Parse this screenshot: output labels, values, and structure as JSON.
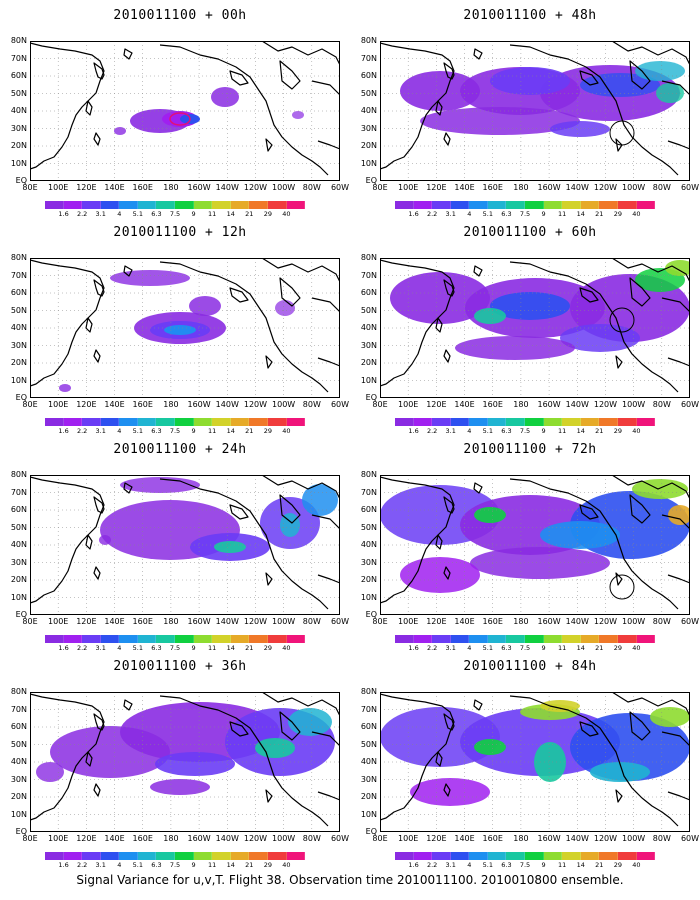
{
  "panels": [
    {
      "title": "2010011100 + 00h"
    },
    {
      "title": "2010011100 + 48h"
    },
    {
      "title": "2010011100 + 12h"
    },
    {
      "title": "2010011100 + 60h"
    },
    {
      "title": "2010011100 + 24h"
    },
    {
      "title": "2010011100 + 72h"
    },
    {
      "title": "2010011100 + 36h"
    },
    {
      "title": "2010011100 + 84h"
    }
  ],
  "map": {
    "lat_labels": [
      "80N",
      "70N",
      "60N",
      "50N",
      "40N",
      "30N",
      "20N",
      "10N",
      "EQ"
    ],
    "lon_labels": [
      "80E",
      "100E",
      "120E",
      "140E",
      "160E",
      "180",
      "160W",
      "140W",
      "120W",
      "100W",
      "80W",
      "60W"
    ],
    "grid": "dotted",
    "lat_range": [
      0,
      80
    ],
    "lon_range": [
      "80E",
      "60W"
    ]
  },
  "colorbar": {
    "levels": [
      "1.6",
      "2.2",
      "3.1",
      "4",
      "5.1",
      "6.3",
      "7.5",
      "9",
      "11",
      "14",
      "21",
      "29",
      "40"
    ],
    "colors": [
      "#8a2be2",
      "#a020f0",
      "#6a3cf5",
      "#2e50f0",
      "#1e8ff0",
      "#20b4d2",
      "#18c8a0",
      "#10d040",
      "#8edc30",
      "#d2d22a",
      "#e6aa28",
      "#f07828",
      "#f03c3c",
      "#f0147a"
    ]
  },
  "caption": "Signal Variance for u,v,T. Flight 38. Observation time 2010011100. 2010010800 ensemble."
}
